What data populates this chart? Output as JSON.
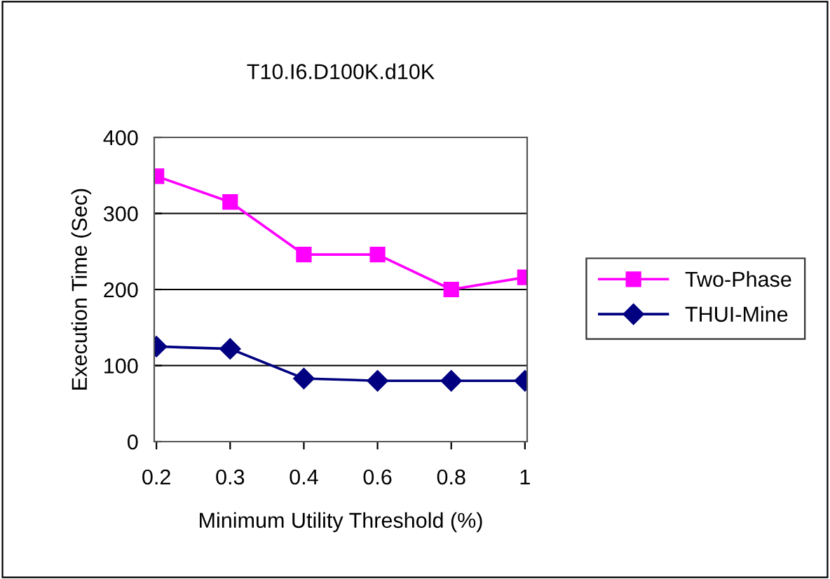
{
  "chart_data": {
    "type": "line",
    "title": "T10.I6.D100K.d10K",
    "xlabel": "Minimum Utility Threshold (%)",
    "ylabel": "Execution Time (Sec)",
    "categories": [
      "0.2",
      "0.3",
      "0.4",
      "0.6",
      "0.8",
      "1"
    ],
    "series": [
      {
        "name": "Two-Phase",
        "color": "#ff00ff",
        "marker": "square",
        "values": [
          349,
          315,
          246,
          246,
          200,
          216
        ]
      },
      {
        "name": "THUI-Mine",
        "color": "#000080",
        "marker": "diamond",
        "values": [
          125,
          122,
          83,
          80,
          80,
          80
        ]
      }
    ],
    "ylim": [
      0,
      400
    ],
    "yticks": [
      0,
      100,
      200,
      300,
      400
    ],
    "grid": "y",
    "legend": "right",
    "line_style": "solid"
  }
}
